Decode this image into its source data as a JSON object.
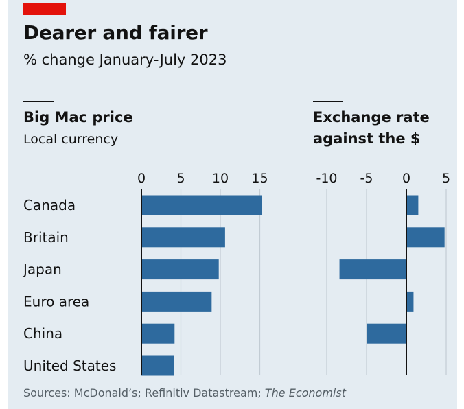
{
  "header": {
    "title": "Dearer and fairer",
    "subtitle": "% change January-July 2023"
  },
  "panels": {
    "left": {
      "title": "Big Mac price",
      "subtitle": "Local currency"
    },
    "right": {
      "title_line1": "Exchange rate",
      "title_line2": "against the $"
    }
  },
  "footer": {
    "source_prefix": "Sources: McDonald’s; Refinitiv Datastream; ",
    "source_italic": "The Economist"
  },
  "colors": {
    "bar": "#2e6a9e",
    "accent": "#e3120b",
    "background": "#e4ecf2",
    "grid": "#c2ccd4"
  },
  "chart_data": {
    "type": "bar",
    "orientation": "horizontal",
    "categories": [
      "Canada",
      "Britain",
      "Japan",
      "Euro area",
      "China",
      "United States"
    ],
    "panels": [
      {
        "title": "Big Mac price",
        "subtitle": "Local currency",
        "values": [
          15.3,
          10.6,
          9.8,
          8.9,
          4.2,
          4.1
        ],
        "xlim": [
          0,
          16
        ],
        "ticks": [
          0,
          5,
          10,
          15
        ],
        "tick_labels": [
          "0",
          "5",
          "10",
          "15"
        ]
      },
      {
        "title": "Exchange rate against the $",
        "values": [
          1.5,
          4.8,
          -8.4,
          0.9,
          -5.0,
          0
        ],
        "xlim": [
          -11,
          6
        ],
        "ticks": [
          -10,
          -5,
          0,
          5
        ],
        "tick_labels": [
          "-10",
          "-5",
          "0",
          "5"
        ]
      }
    ],
    "grid": true
  }
}
